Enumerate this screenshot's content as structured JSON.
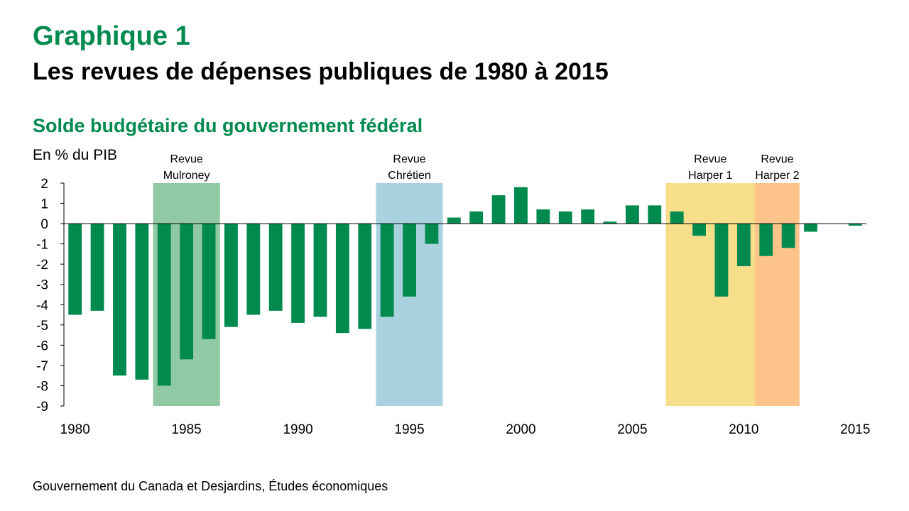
{
  "header": {
    "label": "Graphique 1",
    "title": "Les revues de dépenses publiques de 1980 à 2015"
  },
  "colors": {
    "accent": "#008A4E",
    "bar": "#008A4E",
    "mulroney": "#90C9A4",
    "chretien": "#A9D2DE",
    "harper1": "#F7DE8A",
    "harper2": "#FCC48A"
  },
  "chart_data": {
    "type": "bar",
    "title": "Solde budgétaire du gouvernement fédéral",
    "ylabel": "En % du PIB",
    "ylim": [
      -9,
      2
    ],
    "yticks": [
      2,
      1,
      0,
      -1,
      -2,
      -3,
      -4,
      -5,
      -6,
      -7,
      -8,
      -9
    ],
    "xticks": [
      "1980",
      "1985",
      "1990",
      "1995",
      "2000",
      "2005",
      "2010",
      "2015"
    ],
    "x": [
      1980,
      1981,
      1982,
      1983,
      1984,
      1985,
      1986,
      1987,
      1988,
      1989,
      1990,
      1991,
      1992,
      1993,
      1994,
      1995,
      1996,
      1997,
      1998,
      1999,
      2000,
      2001,
      2002,
      2003,
      2004,
      2005,
      2006,
      2007,
      2008,
      2009,
      2010,
      2011,
      2012,
      2013,
      2014,
      2015
    ],
    "values": [
      -4.5,
      -4.3,
      -7.5,
      -7.7,
      -8.0,
      -6.7,
      -5.7,
      -5.1,
      -4.5,
      -4.3,
      -4.9,
      -4.6,
      -5.4,
      -5.2,
      -4.6,
      -3.6,
      -1.0,
      0.3,
      0.6,
      1.4,
      1.8,
      0.7,
      0.6,
      0.7,
      0.1,
      0.9,
      0.9,
      0.6,
      -0.6,
      -3.6,
      -2.1,
      -1.6,
      -1.2,
      -0.4,
      0.0,
      -0.1
    ],
    "annotations": [
      {
        "lines": [
          "Revue",
          "Mulroney"
        ],
        "from": 1984,
        "to": 1986,
        "color": "mulroney"
      },
      {
        "lines": [
          "Revue",
          "Chrétien"
        ],
        "from": 1994,
        "to": 1996,
        "color": "chretien"
      },
      {
        "lines": [
          "Revue",
          "Harper 1"
        ],
        "from": 2007,
        "to": 2010,
        "color": "harper1"
      },
      {
        "lines": [
          "Revue",
          "Harper 2"
        ],
        "from": 2011,
        "to": 2012,
        "color": "harper2"
      }
    ]
  },
  "footer": {
    "source": "Gouvernement  du Canada et Desjardins, Études économiques"
  }
}
